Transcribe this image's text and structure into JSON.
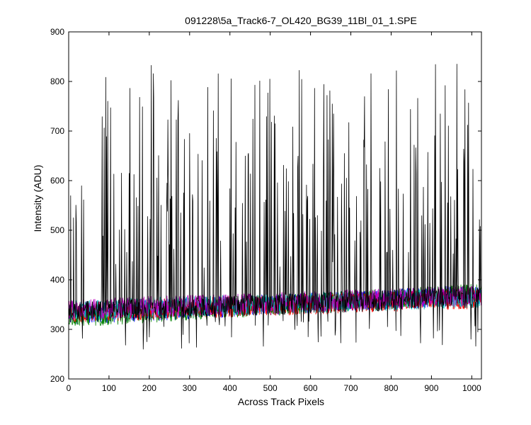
{
  "chart_data": {
    "type": "line",
    "title": "091228\\5a_Track6-7_OL420_BG39_11Bl_01_1.SPE",
    "xlabel": "Across Track Pixels",
    "ylabel": "Intensity (ADU)",
    "xlim": [
      0,
      1024
    ],
    "ylim": [
      200,
      900
    ],
    "xticks": [
      0,
      100,
      200,
      300,
      400,
      500,
      600,
      700,
      800,
      900,
      1000
    ],
    "yticks": [
      200,
      300,
      400,
      500,
      600,
      700,
      800,
      900
    ],
    "grid": false,
    "series": [
      {
        "color": "#000000",
        "y_min": 260,
        "y_max": 835,
        "baseline_start": 335,
        "baseline_end": 365
      },
      {
        "color": "#0000ff",
        "baseline_start": 330,
        "baseline_end": 370
      },
      {
        "color": "#008000",
        "baseline_start": 325,
        "baseline_end": 372
      },
      {
        "color": "#ff0000",
        "baseline_start": 335,
        "baseline_end": 362
      },
      {
        "color": "#00bfbf",
        "baseline_start": 338,
        "baseline_end": 365
      },
      {
        "color": "#bf00bf",
        "baseline_start": 340,
        "baseline_end": 368
      }
    ]
  }
}
